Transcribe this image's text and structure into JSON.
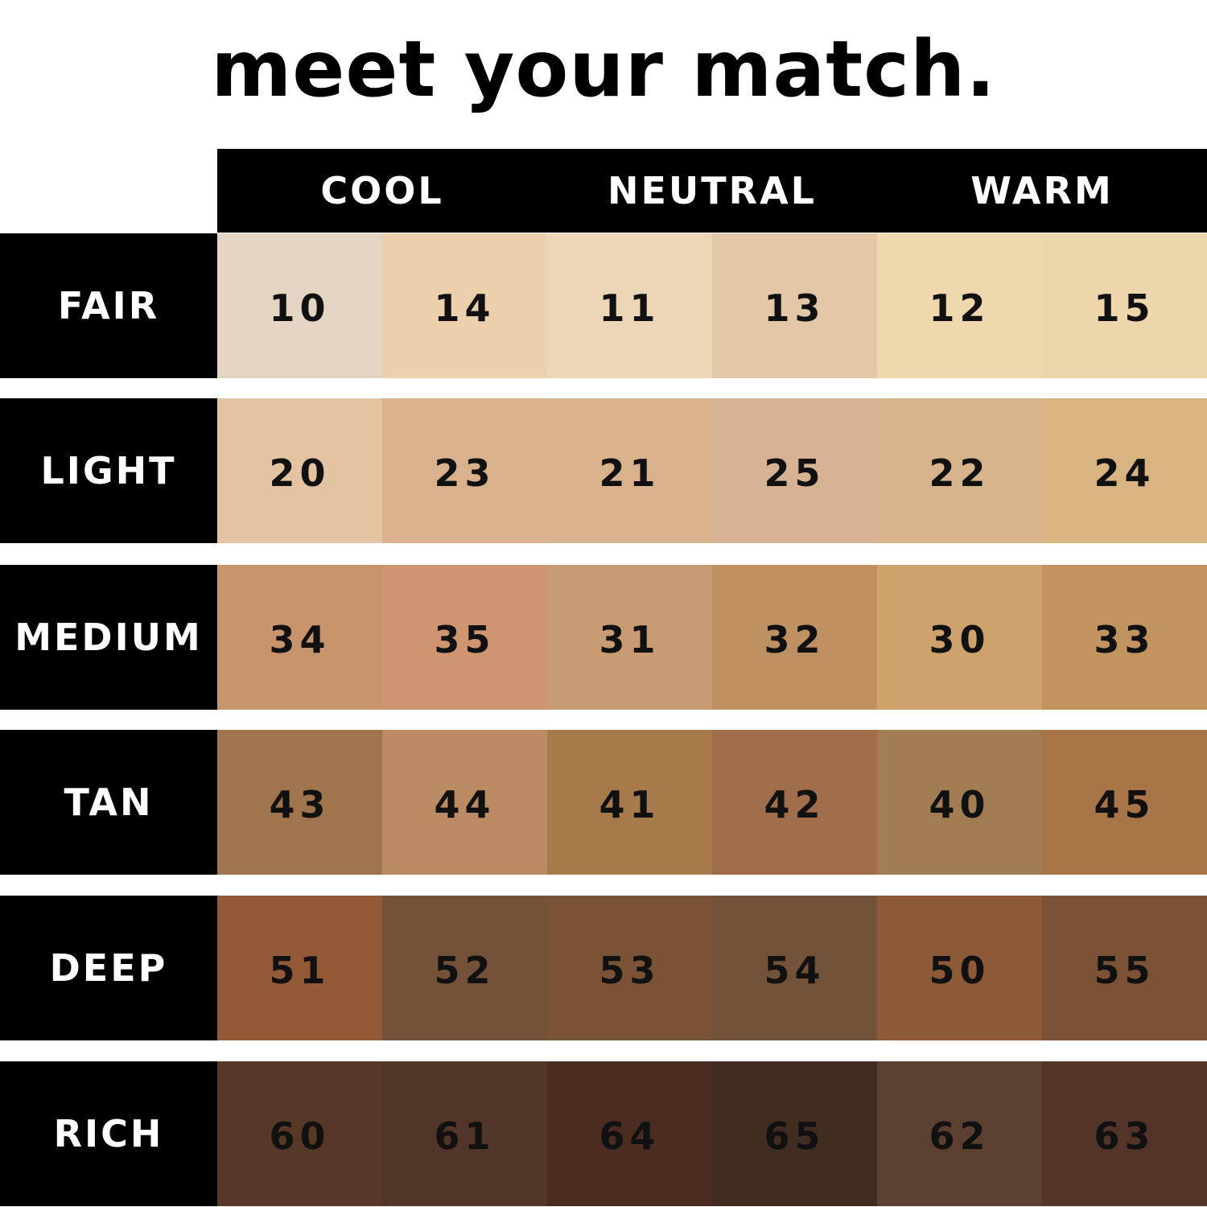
{
  "title": "meet your match.",
  "columns": [
    "COOL",
    "NEUTRAL",
    "WARM"
  ],
  "rows": [
    {
      "label": "FAIR",
      "shades": [
        {
          "number": "10",
          "color": "#e4d4c3"
        },
        {
          "number": "14",
          "color": "#eccfab"
        },
        {
          "number": "11",
          "color": "#ebd6b8"
        },
        {
          "number": "13",
          "color": "#e3c8a8"
        },
        {
          "number": "12",
          "color": "#f0d8ae"
        },
        {
          "number": "15",
          "color": "#edd6ab"
        }
      ]
    },
    {
      "label": "LIGHT",
      "shades": [
        {
          "number": "20",
          "color": "#e3c3a2"
        },
        {
          "number": "23",
          "color": "#d9b18c"
        },
        {
          "number": "21",
          "color": "#d7b28c"
        },
        {
          "number": "25",
          "color": "#d5b293"
        },
        {
          "number": "22",
          "color": "#d8b48d"
        },
        {
          "number": "24",
          "color": "#d8b483"
        }
      ]
    },
    {
      "label": "MEDIUM",
      "shades": [
        {
          "number": "34",
          "color": "#c8946b"
        },
        {
          "number": "35",
          "color": "#ce9570"
        },
        {
          "number": "31",
          "color": "#c89b72"
        },
        {
          "number": "32",
          "color": "#bf9061"
        },
        {
          "number": "30",
          "color": "#cda26b"
        },
        {
          "number": "33",
          "color": "#c0935f"
        }
      ]
    },
    {
      "label": "TAN",
      "shades": [
        {
          "number": "43",
          "color": "#a0754d"
        },
        {
          "number": "44",
          "color": "#bb8c63"
        },
        {
          "number": "41",
          "color": "#a77a4b"
        },
        {
          "number": "42",
          "color": "#a06e4b"
        },
        {
          "number": "40",
          "color": "#a27c52"
        },
        {
          "number": "45",
          "color": "#a87548"
        }
      ]
    },
    {
      "label": "DEEP",
      "shades": [
        {
          "number": "51",
          "color": "#935a37"
        },
        {
          "number": "52",
          "color": "#74523a"
        },
        {
          "number": "53",
          "color": "#7a5337"
        },
        {
          "number": "54",
          "color": "#73523a"
        },
        {
          "number": "50",
          "color": "#8d5a38"
        },
        {
          "number": "55",
          "color": "#7b5236"
        }
      ]
    },
    {
      "label": "RICH",
      "shades": [
        {
          "number": "60",
          "color": "#573827"
        },
        {
          "number": "61",
          "color": "#513528"
        },
        {
          "number": "64",
          "color": "#4a2c20"
        },
        {
          "number": "65",
          "color": "#412c22"
        },
        {
          "number": "62",
          "color": "#5b3f30"
        },
        {
          "number": "63",
          "color": "#533428"
        }
      ]
    }
  ]
}
